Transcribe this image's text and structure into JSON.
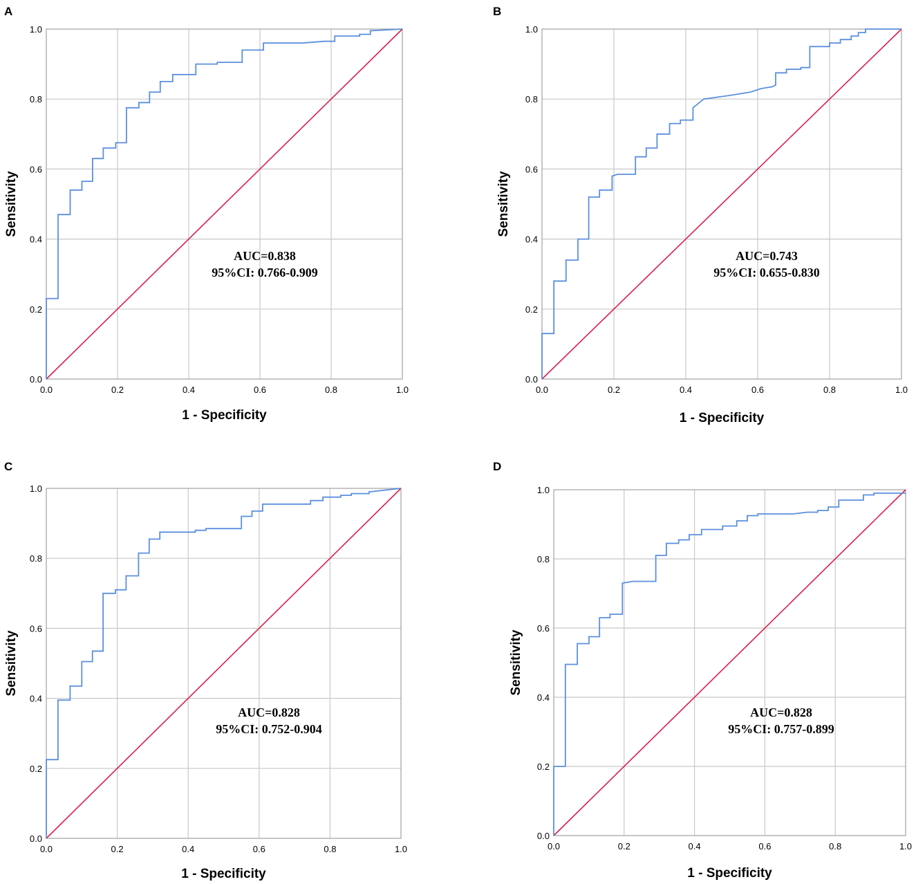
{
  "chart_data": [
    {
      "panel": "A",
      "type": "line",
      "title": "",
      "xlabel": "1 - Specificity",
      "ylabel": "Sensitivity",
      "xlim": [
        0,
        1
      ],
      "ylim": [
        0,
        1
      ],
      "xticks": [
        "0.0",
        "0.2",
        "0.4",
        "0.6",
        "0.8",
        "1.0"
      ],
      "yticks": [
        "0.0",
        "0.2",
        "0.4",
        "0.6",
        "0.8",
        "1.0"
      ],
      "grid": true,
      "auc_text": "AUC=0.838",
      "ci_text": "95%CI: 0.766-0.909",
      "series": [
        {
          "name": "ROC",
          "color": "#5b8fde",
          "points": [
            [
              0,
              0
            ],
            [
              0,
              0.23
            ],
            [
              0.033,
              0.23
            ],
            [
              0.033,
              0.47
            ],
            [
              0.067,
              0.47
            ],
            [
              0.067,
              0.54
            ],
            [
              0.1,
              0.54
            ],
            [
              0.1,
              0.565
            ],
            [
              0.13,
              0.565
            ],
            [
              0.13,
              0.63
            ],
            [
              0.16,
              0.63
            ],
            [
              0.16,
              0.66
            ],
            [
              0.195,
              0.66
            ],
            [
              0.195,
              0.675
            ],
            [
              0.225,
              0.675
            ],
            [
              0.225,
              0.775
            ],
            [
              0.26,
              0.775
            ],
            [
              0.26,
              0.79
            ],
            [
              0.29,
              0.79
            ],
            [
              0.29,
              0.82
            ],
            [
              0.32,
              0.82
            ],
            [
              0.32,
              0.85
            ],
            [
              0.355,
              0.85
            ],
            [
              0.355,
              0.87
            ],
            [
              0.42,
              0.87
            ],
            [
              0.42,
              0.9
            ],
            [
              0.48,
              0.9
            ],
            [
              0.48,
              0.905
            ],
            [
              0.55,
              0.905
            ],
            [
              0.55,
              0.94
            ],
            [
              0.61,
              0.94
            ],
            [
              0.61,
              0.96
            ],
            [
              0.72,
              0.96
            ],
            [
              0.78,
              0.965
            ],
            [
              0.81,
              0.965
            ],
            [
              0.81,
              0.98
            ],
            [
              0.88,
              0.98
            ],
            [
              0.88,
              0.985
            ],
            [
              0.91,
              0.985
            ],
            [
              0.91,
              0.995
            ],
            [
              1,
              1
            ]
          ]
        },
        {
          "name": "Reference line",
          "color": "#dc1e4a",
          "points": [
            [
              0,
              0
            ],
            [
              1,
              1
            ]
          ]
        }
      ]
    },
    {
      "panel": "B",
      "type": "line",
      "title": "",
      "xlabel": "1 - Specificity",
      "ylabel": "Sensitivity",
      "xlim": [
        0,
        1
      ],
      "ylim": [
        0,
        1
      ],
      "xticks": [
        "0.0",
        "0.2",
        "0.4",
        "0.6",
        "0.8",
        "1.0"
      ],
      "yticks": [
        "0.0",
        "0.2",
        "0.4",
        "0.6",
        "0.8",
        "1.0"
      ],
      "grid": true,
      "auc_text": "AUC=0.743",
      "ci_text": "95%CI: 0.655-0.830",
      "series": [
        {
          "name": "ROC",
          "color": "#5b8fde",
          "points": [
            [
              0,
              0
            ],
            [
              0,
              0.13
            ],
            [
              0.033,
              0.13
            ],
            [
              0.033,
              0.28
            ],
            [
              0.067,
              0.28
            ],
            [
              0.067,
              0.34
            ],
            [
              0.1,
              0.34
            ],
            [
              0.1,
              0.4
            ],
            [
              0.13,
              0.4
            ],
            [
              0.13,
              0.52
            ],
            [
              0.16,
              0.52
            ],
            [
              0.16,
              0.54
            ],
            [
              0.195,
              0.54
            ],
            [
              0.195,
              0.58
            ],
            [
              0.21,
              0.585
            ],
            [
              0.26,
              0.585
            ],
            [
              0.26,
              0.635
            ],
            [
              0.29,
              0.635
            ],
            [
              0.29,
              0.66
            ],
            [
              0.32,
              0.66
            ],
            [
              0.32,
              0.7
            ],
            [
              0.355,
              0.7
            ],
            [
              0.355,
              0.73
            ],
            [
              0.385,
              0.73
            ],
            [
              0.385,
              0.74
            ],
            [
              0.42,
              0.74
            ],
            [
              0.42,
              0.775
            ],
            [
              0.45,
              0.8
            ],
            [
              0.52,
              0.81
            ],
            [
              0.55,
              0.815
            ],
            [
              0.58,
              0.82
            ],
            [
              0.61,
              0.83
            ],
            [
              0.64,
              0.835
            ],
            [
              0.65,
              0.84
            ],
            [
              0.65,
              0.875
            ],
            [
              0.68,
              0.875
            ],
            [
              0.68,
              0.885
            ],
            [
              0.72,
              0.885
            ],
            [
              0.72,
              0.89
            ],
            [
              0.745,
              0.89
            ],
            [
              0.745,
              0.95
            ],
            [
              0.8,
              0.95
            ],
            [
              0.8,
              0.96
            ],
            [
              0.83,
              0.96
            ],
            [
              0.83,
              0.97
            ],
            [
              0.86,
              0.97
            ],
            [
              0.86,
              0.98
            ],
            [
              0.88,
              0.98
            ],
            [
              0.88,
              0.99
            ],
            [
              0.9,
              0.99
            ],
            [
              0.9,
              1
            ],
            [
              1,
              1
            ]
          ]
        },
        {
          "name": "Reference line",
          "color": "#dc1e4a",
          "points": [
            [
              0,
              0
            ],
            [
              1,
              1
            ]
          ]
        }
      ]
    },
    {
      "panel": "C",
      "type": "line",
      "title": "",
      "xlabel": "1 - Specificity",
      "ylabel": "Sensitivity",
      "xlim": [
        0,
        1
      ],
      "ylim": [
        0,
        1
      ],
      "xticks": [
        "0.0",
        "0.2",
        "0.4",
        "0.6",
        "0.8",
        "1.0"
      ],
      "yticks": [
        "0.0",
        "0.2",
        "0.4",
        "0.6",
        "0.8",
        "1.0"
      ],
      "grid": true,
      "auc_text": "AUC=0.828",
      "ci_text": "95%CI: 0.752-0.904",
      "series": [
        {
          "name": "ROC",
          "color": "#5b8fde",
          "points": [
            [
              0,
              0
            ],
            [
              0,
              0.225
            ],
            [
              0.033,
              0.225
            ],
            [
              0.033,
              0.395
            ],
            [
              0.067,
              0.395
            ],
            [
              0.067,
              0.435
            ],
            [
              0.1,
              0.435
            ],
            [
              0.1,
              0.505
            ],
            [
              0.13,
              0.505
            ],
            [
              0.13,
              0.535
            ],
            [
              0.16,
              0.535
            ],
            [
              0.16,
              0.7
            ],
            [
              0.195,
              0.7
            ],
            [
              0.195,
              0.71
            ],
            [
              0.225,
              0.71
            ],
            [
              0.225,
              0.75
            ],
            [
              0.26,
              0.75
            ],
            [
              0.26,
              0.815
            ],
            [
              0.29,
              0.815
            ],
            [
              0.29,
              0.855
            ],
            [
              0.32,
              0.855
            ],
            [
              0.32,
              0.875
            ],
            [
              0.42,
              0.875
            ],
            [
              0.42,
              0.88
            ],
            [
              0.45,
              0.88
            ],
            [
              0.45,
              0.885
            ],
            [
              0.55,
              0.885
            ],
            [
              0.55,
              0.92
            ],
            [
              0.58,
              0.92
            ],
            [
              0.58,
              0.935
            ],
            [
              0.61,
              0.935
            ],
            [
              0.61,
              0.955
            ],
            [
              0.745,
              0.955
            ],
            [
              0.745,
              0.965
            ],
            [
              0.78,
              0.965
            ],
            [
              0.78,
              0.975
            ],
            [
              0.83,
              0.975
            ],
            [
              0.83,
              0.98
            ],
            [
              0.86,
              0.98
            ],
            [
              0.86,
              0.985
            ],
            [
              0.91,
              0.985
            ],
            [
              0.91,
              0.99
            ],
            [
              1,
              1
            ]
          ]
        },
        {
          "name": "Reference line",
          "color": "#dc1e4a",
          "points": [
            [
              0,
              0
            ],
            [
              1,
              1
            ]
          ]
        }
      ]
    },
    {
      "panel": "D",
      "type": "line",
      "title": "",
      "xlabel": "1 - Specificity",
      "ylabel": "Sensitivity",
      "xlim": [
        0,
        1
      ],
      "ylim": [
        0,
        1
      ],
      "xticks": [
        "0.0",
        "0.2",
        "0.4",
        "0.6",
        "0.8",
        "1.0"
      ],
      "yticks": [
        "0.0",
        "0.2",
        "0.4",
        "0.6",
        "0.8",
        "1.0"
      ],
      "grid": true,
      "auc_text": "AUC=0.828",
      "ci_text": "95%CI: 0.757-0.899",
      "series": [
        {
          "name": "ROC",
          "color": "#5b8fde",
          "points": [
            [
              0,
              0
            ],
            [
              0,
              0.2
            ],
            [
              0.033,
              0.2
            ],
            [
              0.033,
              0.495
            ],
            [
              0.067,
              0.495
            ],
            [
              0.067,
              0.555
            ],
            [
              0.1,
              0.555
            ],
            [
              0.1,
              0.575
            ],
            [
              0.13,
              0.575
            ],
            [
              0.13,
              0.63
            ],
            [
              0.16,
              0.63
            ],
            [
              0.16,
              0.64
            ],
            [
              0.195,
              0.64
            ],
            [
              0.195,
              0.73
            ],
            [
              0.225,
              0.735
            ],
            [
              0.29,
              0.735
            ],
            [
              0.29,
              0.81
            ],
            [
              0.32,
              0.81
            ],
            [
              0.32,
              0.845
            ],
            [
              0.355,
              0.845
            ],
            [
              0.355,
              0.855
            ],
            [
              0.385,
              0.855
            ],
            [
              0.385,
              0.87
            ],
            [
              0.42,
              0.87
            ],
            [
              0.42,
              0.885
            ],
            [
              0.48,
              0.885
            ],
            [
              0.48,
              0.895
            ],
            [
              0.52,
              0.895
            ],
            [
              0.52,
              0.91
            ],
            [
              0.55,
              0.91
            ],
            [
              0.55,
              0.925
            ],
            [
              0.58,
              0.925
            ],
            [
              0.58,
              0.93
            ],
            [
              0.68,
              0.93
            ],
            [
              0.72,
              0.935
            ],
            [
              0.75,
              0.935
            ],
            [
              0.75,
              0.94
            ],
            [
              0.78,
              0.94
            ],
            [
              0.78,
              0.95
            ],
            [
              0.81,
              0.95
            ],
            [
              0.81,
              0.97
            ],
            [
              0.88,
              0.97
            ],
            [
              0.88,
              0.985
            ],
            [
              0.91,
              0.985
            ],
            [
              0.91,
              0.99
            ],
            [
              1,
              0.99
            ]
          ]
        },
        {
          "name": "Reference line",
          "color": "#dc1e4a",
          "points": [
            [
              0,
              0
            ],
            [
              1,
              1
            ]
          ]
        }
      ]
    }
  ]
}
